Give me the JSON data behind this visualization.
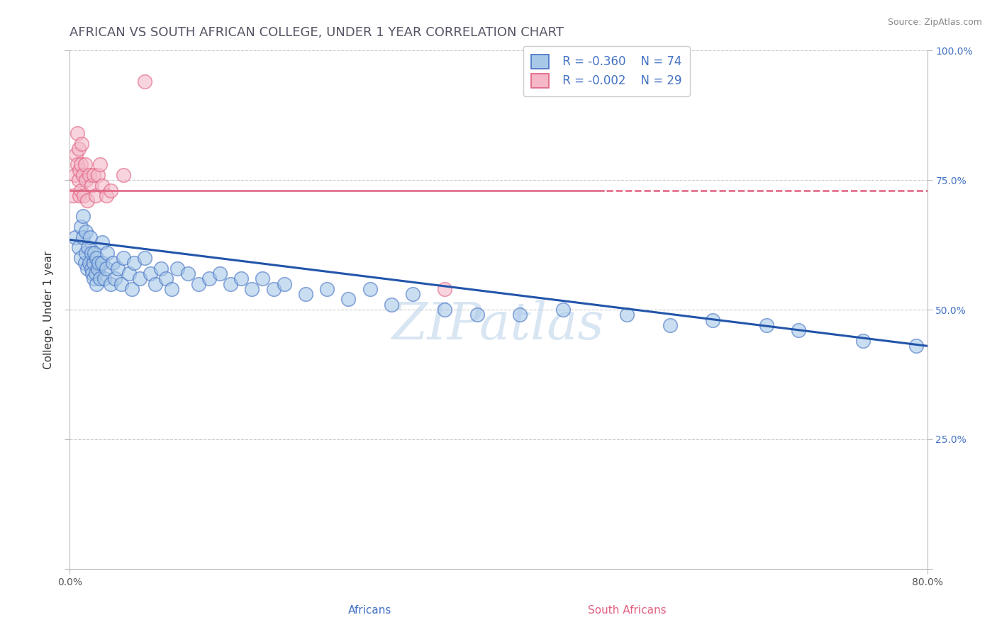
{
  "title": "AFRICAN VS SOUTH AFRICAN COLLEGE, UNDER 1 YEAR CORRELATION CHART",
  "source_text": "Source: ZipAtlas.com",
  "xlabel_africans": "Africans",
  "xlabel_south_africans": "South Africans",
  "ylabel": "College, Under 1 year",
  "xlim": [
    0.0,
    0.8
  ],
  "ylim": [
    0.0,
    1.0
  ],
  "blue_color": "#a8c8e8",
  "blue_edge_color": "#4472c4",
  "pink_color": "#f4b8c8",
  "pink_edge_color": "#e06080",
  "blue_line_color": "#2255aa",
  "pink_line_color": "#e06080",
  "legend_R_blue": "R = -0.360",
  "legend_N_blue": "N = 74",
  "legend_R_pink": "R = -0.002",
  "legend_N_pink": "N = 29",
  "watermark": "ZIPatlas",
  "title_fontsize": 13,
  "axis_label_fontsize": 11,
  "tick_fontsize": 10,
  "blue_x": [
    0.005,
    0.008,
    0.01,
    0.01,
    0.012,
    0.012,
    0.014,
    0.015,
    0.015,
    0.016,
    0.017,
    0.018,
    0.019,
    0.02,
    0.02,
    0.021,
    0.022,
    0.022,
    0.023,
    0.024,
    0.025,
    0.025,
    0.026,
    0.027,
    0.028,
    0.03,
    0.03,
    0.032,
    0.034,
    0.035,
    0.038,
    0.04,
    0.042,
    0.045,
    0.048,
    0.05,
    0.055,
    0.058,
    0.06,
    0.065,
    0.07,
    0.075,
    0.08,
    0.085,
    0.09,
    0.095,
    0.1,
    0.11,
    0.12,
    0.13,
    0.14,
    0.15,
    0.16,
    0.17,
    0.18,
    0.19,
    0.2,
    0.22,
    0.24,
    0.26,
    0.28,
    0.3,
    0.32,
    0.35,
    0.38,
    0.42,
    0.46,
    0.52,
    0.56,
    0.6,
    0.65,
    0.68,
    0.74,
    0.79
  ],
  "blue_y": [
    0.64,
    0.62,
    0.66,
    0.6,
    0.68,
    0.64,
    0.59,
    0.65,
    0.61,
    0.58,
    0.62,
    0.59,
    0.64,
    0.61,
    0.58,
    0.57,
    0.56,
    0.59,
    0.61,
    0.57,
    0.6,
    0.55,
    0.58,
    0.59,
    0.56,
    0.63,
    0.59,
    0.56,
    0.58,
    0.61,
    0.55,
    0.59,
    0.56,
    0.58,
    0.55,
    0.6,
    0.57,
    0.54,
    0.59,
    0.56,
    0.6,
    0.57,
    0.55,
    0.58,
    0.56,
    0.54,
    0.58,
    0.57,
    0.55,
    0.56,
    0.57,
    0.55,
    0.56,
    0.54,
    0.56,
    0.54,
    0.55,
    0.53,
    0.54,
    0.52,
    0.54,
    0.51,
    0.53,
    0.5,
    0.49,
    0.49,
    0.5,
    0.49,
    0.47,
    0.48,
    0.47,
    0.46,
    0.44,
    0.43
  ],
  "pink_x": [
    0.003,
    0.005,
    0.006,
    0.007,
    0.007,
    0.008,
    0.008,
    0.009,
    0.009,
    0.01,
    0.01,
    0.011,
    0.012,
    0.013,
    0.014,
    0.015,
    0.016,
    0.018,
    0.02,
    0.022,
    0.024,
    0.026,
    0.028,
    0.03,
    0.034,
    0.038,
    0.05,
    0.07,
    0.35
  ],
  "pink_y": [
    0.72,
    0.76,
    0.8,
    0.84,
    0.78,
    0.75,
    0.81,
    0.72,
    0.77,
    0.78,
    0.73,
    0.82,
    0.76,
    0.72,
    0.78,
    0.75,
    0.71,
    0.76,
    0.74,
    0.76,
    0.72,
    0.76,
    0.78,
    0.74,
    0.72,
    0.73,
    0.76,
    0.94,
    0.54
  ],
  "pink_line_y_intercept": 0.73,
  "pink_line_slope": 0.0,
  "pink_line_solid_end": 0.5,
  "blue_line_y_start": 0.635,
  "blue_line_y_end": 0.43
}
